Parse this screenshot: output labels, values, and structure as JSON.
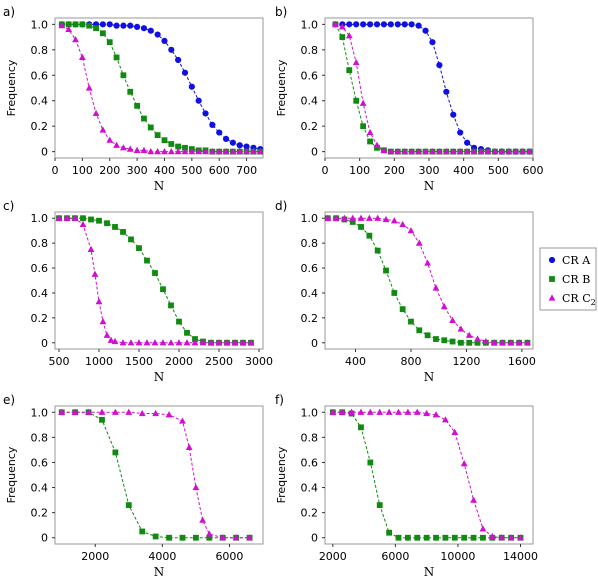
{
  "colors": {
    "series_a": "#1010e0",
    "series_b": "#108a10",
    "series_c": "#d010d0",
    "frame": "#999999"
  },
  "legend": {
    "placement": "right",
    "items": [
      {
        "label": "CR A",
        "marker": "circle",
        "color": "#1010e0"
      },
      {
        "label": "CR B",
        "marker": "square",
        "color": "#108a10"
      },
      {
        "label": "CR C",
        "subscript": "2",
        "marker": "triangle",
        "color": "#d010d0"
      }
    ]
  },
  "chart_data": [
    {
      "panel": "a)",
      "type": "line",
      "xlabel": "N",
      "ylabel": "Frequency",
      "xlim": [
        0,
        760
      ],
      "ylim": [
        -0.05,
        1.05
      ],
      "xticks": [
        "0",
        "100",
        "200",
        "300",
        "400",
        "500",
        "600",
        "700"
      ],
      "yticks": [
        "0",
        "0.2",
        "0.4",
        "0.6",
        "0.8",
        "1.0"
      ],
      "series": [
        {
          "name": "CR A",
          "marker": "circle",
          "x": [
            25,
            50,
            75,
            100,
            125,
            150,
            175,
            200,
            225,
            250,
            275,
            300,
            325,
            350,
            375,
            400,
            425,
            450,
            475,
            500,
            525,
            550,
            575,
            600,
            625,
            650,
            675,
            700,
            725,
            750
          ],
          "y": [
            1,
            1,
            1,
            1,
            1,
            1,
            1,
            1,
            0.99,
            0.99,
            0.99,
            0.98,
            0.97,
            0.95,
            0.92,
            0.87,
            0.8,
            0.72,
            0.62,
            0.51,
            0.4,
            0.3,
            0.21,
            0.15,
            0.1,
            0.07,
            0.05,
            0.04,
            0.03,
            0.02
          ]
        },
        {
          "name": "CR B",
          "marker": "square",
          "x": [
            25,
            50,
            75,
            100,
            125,
            150,
            175,
            200,
            225,
            250,
            275,
            300,
            325,
            350,
            375,
            400,
            425,
            450,
            475,
            500,
            525,
            550,
            575,
            600,
            625,
            650,
            675,
            700,
            725,
            750
          ],
          "y": [
            1,
            1,
            1,
            1,
            0.99,
            0.97,
            0.93,
            0.86,
            0.74,
            0.6,
            0.47,
            0.36,
            0.26,
            0.19,
            0.13,
            0.09,
            0.06,
            0.04,
            0.03,
            0.02,
            0.01,
            0.01,
            0,
            0,
            0,
            0,
            0,
            0,
            0,
            0
          ]
        },
        {
          "name": "CR C2",
          "marker": "triangle",
          "x": [
            25,
            50,
            75,
            100,
            125,
            150,
            175,
            200,
            225,
            250,
            275,
            300,
            325,
            350,
            375,
            400,
            425,
            450,
            475,
            500,
            525,
            550,
            575,
            600,
            625,
            650,
            675,
            700,
            725,
            750
          ],
          "y": [
            0.99,
            0.96,
            0.88,
            0.74,
            0.5,
            0.3,
            0.17,
            0.09,
            0.05,
            0.03,
            0.02,
            0.01,
            0.01,
            0,
            0,
            0,
            0,
            0,
            0,
            0,
            0,
            0,
            0,
            0,
            0,
            0,
            0,
            0,
            0,
            0
          ]
        }
      ]
    },
    {
      "panel": "b)",
      "type": "line",
      "xlabel": "N",
      "ylabel": "Frequency",
      "xlim": [
        0,
        600
      ],
      "ylim": [
        -0.05,
        1.05
      ],
      "xticks": [
        "0",
        "100",
        "200",
        "300",
        "400",
        "500",
        "600"
      ],
      "yticks": [
        "0",
        "0.2",
        "0.4",
        "0.6",
        "0.8",
        "1.0"
      ],
      "series": [
        {
          "name": "CR A",
          "marker": "circle",
          "x": [
            30,
            50,
            70,
            90,
            110,
            130,
            150,
            170,
            190,
            210,
            230,
            250,
            270,
            290,
            310,
            330,
            350,
            370,
            390,
            410,
            430,
            450,
            470,
            490,
            510,
            530,
            550,
            570,
            590
          ],
          "y": [
            1,
            1,
            1,
            1,
            1,
            1,
            1,
            1,
            1,
            1,
            1,
            1,
            0.99,
            0.95,
            0.86,
            0.68,
            0.47,
            0.29,
            0.15,
            0.07,
            0.03,
            0.02,
            0.01,
            0,
            0,
            0,
            0,
            0,
            0
          ]
        },
        {
          "name": "CR B",
          "marker": "square",
          "x": [
            30,
            50,
            70,
            90,
            110,
            130,
            150,
            170,
            190,
            210,
            230,
            250,
            270,
            290,
            310,
            330,
            350,
            370,
            390,
            410,
            430,
            450,
            470,
            490,
            510,
            530,
            550,
            570,
            590
          ],
          "y": [
            1,
            0.9,
            0.64,
            0.4,
            0.2,
            0.08,
            0.03,
            0.01,
            0,
            0,
            0,
            0,
            0,
            0,
            0,
            0,
            0,
            0,
            0,
            0,
            0,
            0,
            0,
            0,
            0,
            0,
            0,
            0,
            0
          ]
        },
        {
          "name": "CR C2",
          "marker": "triangle",
          "x": [
            30,
            50,
            70,
            90,
            110,
            130,
            150,
            170,
            190,
            210,
            230,
            250,
            270,
            290,
            310,
            330,
            350,
            370,
            390,
            410,
            430,
            450,
            470,
            490,
            510,
            530,
            550,
            570,
            590
          ],
          "y": [
            1,
            0.98,
            0.91,
            0.7,
            0.38,
            0.15,
            0.05,
            0.01,
            0,
            0,
            0,
            0,
            0,
            0,
            0,
            0,
            0,
            0,
            0,
            0,
            0,
            0,
            0,
            0,
            0,
            0,
            0,
            0,
            0
          ]
        }
      ]
    },
    {
      "panel": "c)",
      "type": "line",
      "xlabel": "N",
      "ylabel": "",
      "xlim": [
        450,
        3050
      ],
      "ylim": [
        -0.05,
        1.05
      ],
      "xticks": [
        "500",
        "1000",
        "1500",
        "2000",
        "2500",
        "3000"
      ],
      "yticks": [
        "0",
        "0.2",
        "0.4",
        "0.6",
        "0.8",
        "1.0"
      ],
      "series": [
        {
          "name": "CR B",
          "marker": "square",
          "x": [
            500,
            600,
            700,
            800,
            900,
            1000,
            1100,
            1200,
            1300,
            1400,
            1500,
            1600,
            1700,
            1800,
            1900,
            2000,
            2100,
            2200,
            2300,
            2400,
            2500,
            2600,
            2700,
            2800,
            2900
          ],
          "y": [
            1,
            1,
            1,
            1,
            0.99,
            0.98,
            0.96,
            0.93,
            0.89,
            0.83,
            0.76,
            0.66,
            0.56,
            0.43,
            0.3,
            0.17,
            0.08,
            0.03,
            0.01,
            0,
            0,
            0,
            0,
            0,
            0
          ]
        },
        {
          "name": "CR C2",
          "marker": "triangle",
          "x": [
            500,
            600,
            700,
            800,
            900,
            950,
            1000,
            1050,
            1100,
            1150,
            1200,
            1300,
            1400,
            1500,
            1600,
            1700,
            1800,
            1900,
            2000,
            2100,
            2200,
            2300,
            2400,
            2500,
            2600,
            2700,
            2800,
            2900
          ],
          "y": [
            1,
            1,
            1,
            0.95,
            0.75,
            0.55,
            0.33,
            0.17,
            0.06,
            0.02,
            0.01,
            0,
            0,
            0,
            0,
            0,
            0,
            0,
            0,
            0,
            0,
            0,
            0,
            0,
            0,
            0,
            0,
            0
          ]
        }
      ]
    },
    {
      "panel": "d)",
      "type": "line",
      "xlabel": "N",
      "ylabel": "",
      "xlim": [
        180,
        1680
      ],
      "ylim": [
        -0.05,
        1.05
      ],
      "xticks": [
        "400",
        "800",
        "1200",
        "1600"
      ],
      "yticks": [
        "0",
        "0.2",
        "0.4",
        "0.6",
        "0.8",
        "1.0"
      ],
      "series": [
        {
          "name": "CR B",
          "marker": "square",
          "x": [
            200,
            260,
            320,
            380,
            440,
            500,
            560,
            620,
            680,
            740,
            800,
            860,
            920,
            980,
            1040,
            1100,
            1160,
            1220,
            1280,
            1340,
            1400,
            1460,
            1520,
            1580,
            1640
          ],
          "y": [
            1,
            1,
            0.99,
            0.97,
            0.93,
            0.86,
            0.74,
            0.58,
            0.4,
            0.27,
            0.17,
            0.1,
            0.06,
            0.03,
            0.02,
            0.01,
            0,
            0,
            0,
            0,
            0,
            0,
            0,
            0,
            0
          ]
        },
        {
          "name": "CR C2",
          "marker": "triangle",
          "x": [
            200,
            260,
            320,
            380,
            440,
            500,
            560,
            620,
            680,
            740,
            800,
            860,
            920,
            980,
            1040,
            1100,
            1160,
            1220,
            1280,
            1340,
            1400,
            1460,
            1520,
            1580,
            1640
          ],
          "y": [
            1,
            1,
            1,
            1,
            1,
            1,
            1,
            0.99,
            0.98,
            0.95,
            0.9,
            0.8,
            0.64,
            0.44,
            0.29,
            0.18,
            0.11,
            0.06,
            0.03,
            0.01,
            0,
            0,
            0,
            0,
            0
          ]
        }
      ]
    },
    {
      "panel": "e)",
      "type": "line",
      "xlabel": "N",
      "ylabel": "Frequency",
      "xlim": [
        800,
        7000
      ],
      "ylim": [
        -0.05,
        1.05
      ],
      "xticks": [
        "2000",
        "4000",
        "6000"
      ],
      "yticks": [
        "0",
        "0.2",
        "0.4",
        "0.6",
        "0.8",
        "1.0"
      ],
      "series": [
        {
          "name": "CR B",
          "marker": "square",
          "x": [
            1000,
            1400,
            1800,
            2200,
            2600,
            3000,
            3400,
            3800,
            4200,
            4600,
            5000,
            5400,
            5800,
            6200,
            6600
          ],
          "y": [
            1,
            1,
            1,
            0.94,
            0.68,
            0.26,
            0.05,
            0.01,
            0,
            0,
            0,
            0,
            0,
            0,
            0
          ]
        },
        {
          "name": "CR C2",
          "marker": "triangle",
          "x": [
            1000,
            1400,
            1800,
            2200,
            2600,
            3000,
            3400,
            3800,
            4200,
            4600,
            4800,
            5000,
            5200,
            5400,
            5800,
            6200,
            6600
          ],
          "y": [
            1,
            1,
            1,
            1,
            1,
            1,
            0.99,
            0.99,
            0.98,
            0.93,
            0.72,
            0.4,
            0.14,
            0.03,
            0,
            0,
            0
          ]
        }
      ]
    },
    {
      "panel": "f)",
      "type": "line",
      "xlabel": "N",
      "ylabel": "Frequency",
      "xlim": [
        1500,
        14800
      ],
      "ylim": [
        -0.05,
        1.05
      ],
      "xticks": [
        "2000",
        "6000",
        "10000",
        "14000"
      ],
      "yticks": [
        "0",
        "0.2",
        "0.4",
        "0.6",
        "0.8",
        "1.0"
      ],
      "series": [
        {
          "name": "CR B",
          "marker": "square",
          "x": [
            2000,
            2600,
            3200,
            3800,
            4400,
            5000,
            5600,
            6200,
            6800,
            7400,
            8000,
            8600,
            9200,
            9800,
            10400,
            11000,
            11600,
            12200,
            12800,
            13400,
            14000
          ],
          "y": [
            1,
            1,
            0.99,
            0.88,
            0.6,
            0.26,
            0.04,
            0,
            0,
            0,
            0,
            0,
            0,
            0,
            0,
            0,
            0,
            0,
            0,
            0,
            0
          ]
        },
        {
          "name": "CR C2",
          "marker": "triangle",
          "x": [
            2000,
            2600,
            3200,
            3800,
            4400,
            5000,
            5600,
            6200,
            6800,
            7400,
            8000,
            8600,
            9200,
            9800,
            10400,
            11000,
            11600,
            12200,
            12800,
            13400,
            14000
          ],
          "y": [
            1,
            1,
            1,
            1,
            1,
            1,
            1,
            1,
            1,
            1,
            0.99,
            0.98,
            0.94,
            0.84,
            0.59,
            0.3,
            0.07,
            0.01,
            0,
            0,
            0
          ]
        }
      ]
    }
  ]
}
